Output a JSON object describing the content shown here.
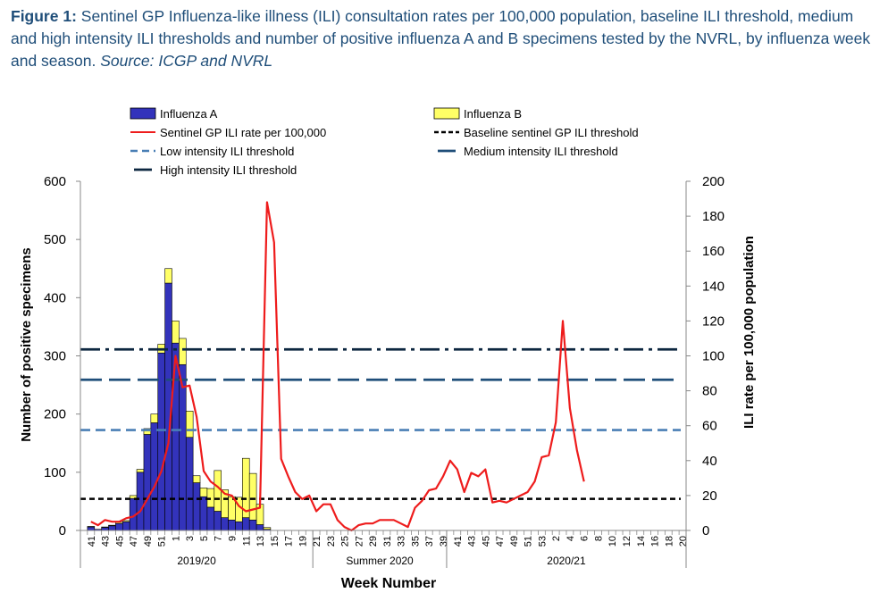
{
  "caption": {
    "label": "Figure 1:",
    "text": " Sentinel GP Influenza-like illness (ILI) consultation rates per 100,000 population, baseline ILI threshold, medium and high intensity ILI thresholds and number of positive influenza A and B specimens tested by the NVRL, by influenza week and season. ",
    "source": "Source: ICGP and NVRL"
  },
  "colors": {
    "influenza_a": "#3333bb",
    "influenza_b": "#ffff66",
    "ili_rate": "#ee1c1c",
    "baseline": "#000000",
    "low": "#4a7fb5",
    "medium": "#1f4e79",
    "high": "#0d2740"
  },
  "chart_data": {
    "type": "bar",
    "title": "",
    "xlabel": "Week Number",
    "ylabel": "Number of positive specimens",
    "y2label": "ILI rate per 100,000 population",
    "ylim": [
      0,
      600
    ],
    "y2lim": [
      0,
      200
    ],
    "yticks": [
      0,
      100,
      200,
      300,
      400,
      500,
      600
    ],
    "y2ticks": [
      0,
      20,
      40,
      60,
      80,
      100,
      120,
      140,
      160,
      180,
      200
    ],
    "categories": [
      "40",
      "41",
      "42",
      "43",
      "44",
      "45",
      "46",
      "47",
      "48",
      "49",
      "50",
      "51",
      "52",
      "1",
      "2",
      "3",
      "4",
      "5",
      "6",
      "7",
      "8",
      "9",
      "10",
      "11",
      "12",
      "13",
      "14",
      "15",
      "16",
      "17",
      "18",
      "19",
      "20",
      "21",
      "22",
      "23",
      "24",
      "25",
      "26",
      "27",
      "28",
      "29",
      "30",
      "31",
      "32",
      "33",
      "34",
      "35",
      "36",
      "37",
      "38",
      "39",
      "40",
      "41",
      "42",
      "43",
      "44",
      "45",
      "46",
      "47",
      "48",
      "49",
      "50",
      "51",
      "52",
      "53",
      "1",
      "2",
      "3",
      "4",
      "5",
      "6",
      "7",
      "8",
      "9",
      "10",
      "11",
      "12",
      "13",
      "14",
      "15",
      "16",
      "17",
      "18",
      "19",
      "20"
    ],
    "tick_labels": [
      "41",
      "43",
      "45",
      "47",
      "49",
      "51",
      "1",
      "3",
      "5",
      "7",
      "9",
      "11",
      "13",
      "15",
      "17",
      "19",
      "21",
      "23",
      "25",
      "27",
      "29",
      "31",
      "33",
      "35",
      "37",
      "39",
      "41",
      "43",
      "45",
      "47",
      "49",
      "51",
      "53",
      "2",
      "4",
      "6",
      "8",
      "10",
      "12",
      "14",
      "16",
      "18",
      "20"
    ],
    "seasons": [
      {
        "label": "2019/20",
        "start": 0,
        "end": 33
      },
      {
        "label": "Summer 2020",
        "start": 33,
        "end": 52
      },
      {
        "label": "2020/21",
        "start": 52,
        "end": 86
      }
    ],
    "series": [
      {
        "name": "Influenza A",
        "kind": "bar",
        "axis": "left",
        "values": [
          0,
          6,
          2,
          5,
          8,
          12,
          15,
          55,
          100,
          165,
          185,
          305,
          425,
          322,
          285,
          160,
          82,
          58,
          40,
          33,
          22,
          18,
          15,
          22,
          18,
          10,
          2,
          0,
          0,
          0,
          0,
          0,
          0,
          0,
          0,
          0,
          0,
          0,
          0,
          0,
          0,
          0,
          0,
          0,
          0,
          0,
          0,
          0,
          0,
          0,
          0,
          0,
          0,
          0,
          0,
          0,
          0,
          0,
          0,
          0,
          0,
          0,
          0,
          0,
          0,
          0,
          0,
          0,
          0,
          0,
          0,
          0,
          0,
          0,
          0,
          0,
          0,
          0,
          0,
          0,
          0,
          0,
          0,
          0,
          0,
          0
        ]
      },
      {
        "name": "Influenza B",
        "kind": "bar",
        "axis": "left",
        "values": [
          0,
          1,
          0,
          1,
          1,
          2,
          2,
          5,
          5,
          10,
          15,
          15,
          25,
          38,
          45,
          45,
          12,
          15,
          32,
          70,
          48,
          40,
          42,
          102,
          80,
          35,
          3,
          0,
          0,
          0,
          0,
          0,
          0,
          0,
          0,
          0,
          0,
          0,
          0,
          0,
          0,
          0,
          0,
          0,
          0,
          0,
          0,
          0,
          0,
          0,
          0,
          0,
          0,
          0,
          0,
          0,
          0,
          0,
          0,
          0,
          0,
          0,
          0,
          0,
          0,
          0,
          0,
          0,
          0,
          0,
          0,
          0,
          0,
          0,
          0,
          0,
          0,
          0,
          0,
          0,
          0,
          0,
          0,
          0,
          0,
          0
        ]
      },
      {
        "name": "Sentinel GP ILI rate per 100,000",
        "kind": "line",
        "axis": "right",
        "values": [
          null,
          5,
          3,
          6,
          5,
          5,
          7,
          8,
          11,
          18,
          25,
          34,
          50,
          100,
          82,
          83,
          65,
          34,
          28,
          25,
          21,
          20,
          14,
          11,
          12,
          13,
          188,
          165,
          41,
          31,
          22,
          18,
          20,
          11,
          15,
          15,
          6,
          2,
          0,
          3,
          4,
          4,
          6,
          6,
          6,
          4,
          2,
          13,
          17,
          23,
          24,
          31,
          40,
          35,
          22,
          33,
          31,
          35,
          16,
          17,
          16,
          18,
          20,
          22,
          28,
          42,
          43,
          62,
          120,
          70,
          46,
          28,
          null,
          null,
          null,
          null,
          null,
          null,
          null,
          null,
          null,
          null,
          null,
          null,
          null,
          null
        ]
      }
    ],
    "thresholds": [
      {
        "name": "Baseline sentinel GP ILI threshold",
        "value": 18.1,
        "axis": "right"
      },
      {
        "name": "Low intensity ILI threshold",
        "value": 57.5,
        "axis": "right"
      },
      {
        "name": "Medium intensity ILI threshold",
        "value": 86.3,
        "axis": "right"
      },
      {
        "name": "High intensity ILI threshold",
        "value": 103.7,
        "axis": "right"
      }
    ],
    "legend": [
      {
        "label": "Influenza A",
        "kind": "bar-a"
      },
      {
        "label": "Influenza B",
        "kind": "bar-b"
      },
      {
        "label": "Sentinel GP ILI rate per 100,000",
        "kind": "line"
      },
      {
        "label": "Baseline sentinel GP ILI threshold",
        "kind": "baseline"
      },
      {
        "label": "Low intensity ILI threshold",
        "kind": "low"
      },
      {
        "label": "Medium intensity ILI threshold",
        "kind": "medium"
      },
      {
        "label": "High intensity ILI threshold",
        "kind": "high"
      }
    ]
  }
}
